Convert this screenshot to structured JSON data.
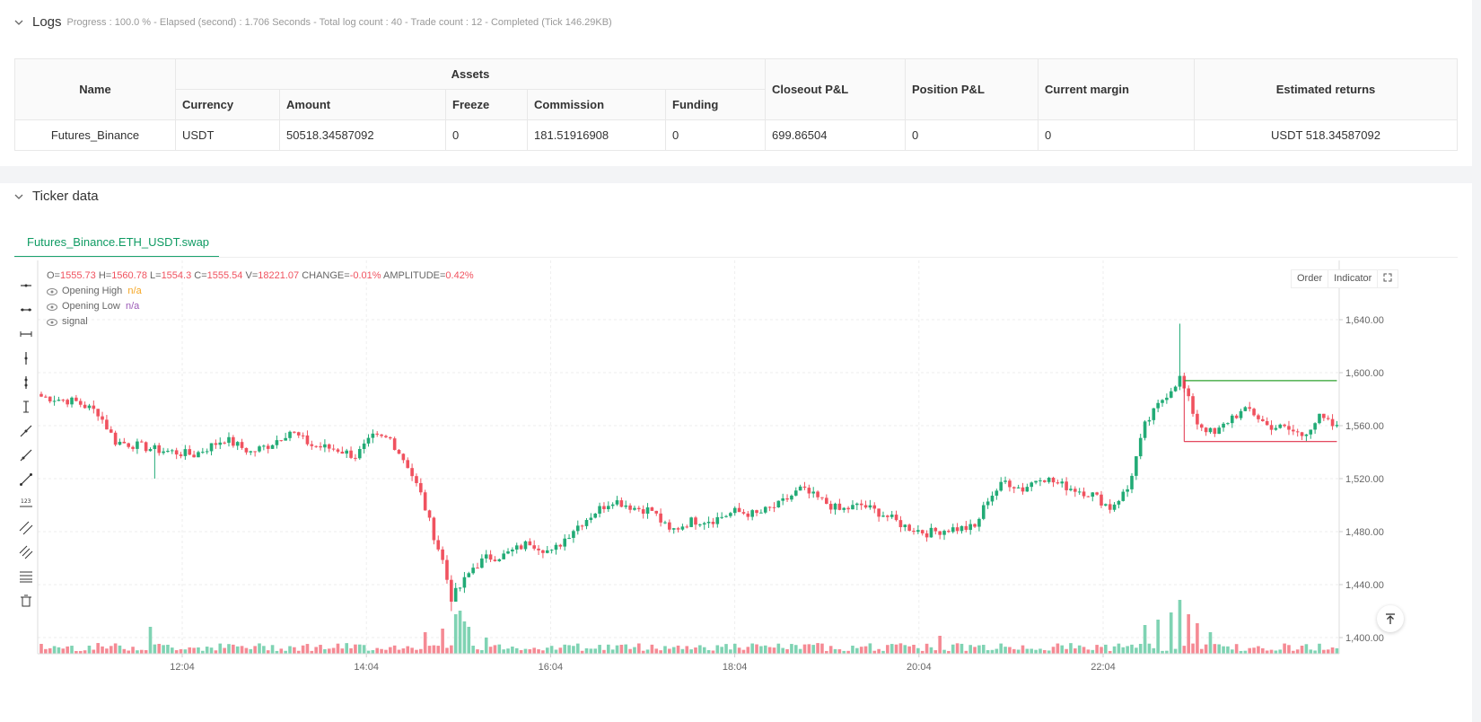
{
  "logs": {
    "title": "Logs",
    "summary": "Progress : 100.0 % - Elapsed (second) : 1.706  Seconds - Total log count : 40 - Trade count : 12 - Completed (Tick 146.29KB)",
    "table": {
      "h_name": "Name",
      "h_assets": "Assets",
      "h_currency": "Currency",
      "h_amount": "Amount",
      "h_freeze": "Freeze",
      "h_commission": "Commission",
      "h_funding": "Funding",
      "h_closeout": "Closeout P&L",
      "h_position": "Position P&L",
      "h_margin": "Current margin",
      "h_returns": "Estimated returns",
      "row": {
        "name": "Futures_Binance",
        "currency": "USDT",
        "amount": "50518.34587092",
        "freeze": "0",
        "commission": "181.51916908",
        "funding": "0",
        "closeout": "699.86504",
        "position": "0",
        "margin": "0",
        "returns": "USDT 518.34587092"
      }
    }
  },
  "ticker": {
    "title": "Ticker data",
    "tab": "Futures_Binance.ETH_USDT.swap",
    "buttons": {
      "order": "Order",
      "indicator": "Indicator"
    },
    "ohlc": {
      "o_label": "O=",
      "o": "1555.73",
      "h_label": "H=",
      "h": "1560.78",
      "l_label": "L=",
      "l": "1554.3",
      "c_label": "C=",
      "c": "1555.54",
      "v_label": "V=",
      "v": "18221.07",
      "chg_label": "CHANGE=",
      "chg": "-0.01%",
      "amp_label": "AMPLITUDE=",
      "amp": "0.42%"
    },
    "indicators": [
      {
        "name": "Opening High",
        "value": "n/a",
        "color": "#f5a623"
      },
      {
        "name": "Opening Low",
        "value": "n/a",
        "color": "#9b59b6"
      },
      {
        "name": "signal",
        "value": ""
      }
    ]
  },
  "colors": {
    "up": "#26a69a",
    "up_bright": "#22ab76",
    "down": "#f0525f",
    "accent": "#0f9b63"
  },
  "chart_data": {
    "type": "candlestick",
    "y_ticks": [
      "1,640.00",
      "1,600.00",
      "1,560.00",
      "1,520.00",
      "1,480.00",
      "1,440.00",
      "1,400.00"
    ],
    "x_ticks": [
      "12:04",
      "14:04",
      "16:04",
      "18:04",
      "20:04",
      "22:04"
    ],
    "ylim": [
      1388,
      1650
    ],
    "anchors": [
      [
        0,
        1582
      ],
      [
        8,
        1578
      ],
      [
        13,
        1570
      ],
      [
        17,
        1548
      ],
      [
        22,
        1545
      ],
      [
        26,
        1542
      ],
      [
        35,
        1538
      ],
      [
        42,
        1550
      ],
      [
        48,
        1540
      ],
      [
        52,
        1545
      ],
      [
        57,
        1556
      ],
      [
        62,
        1545
      ],
      [
        68,
        1542
      ],
      [
        72,
        1537
      ],
      [
        76,
        1551
      ],
      [
        80,
        1550
      ],
      [
        84,
        1530
      ],
      [
        87,
        1508
      ],
      [
        90,
        1477
      ],
      [
        92,
        1458
      ],
      [
        94,
        1430
      ],
      [
        96,
        1438
      ],
      [
        99,
        1453
      ],
      [
        102,
        1460
      ],
      [
        106,
        1462
      ],
      [
        112,
        1472
      ],
      [
        117,
        1464
      ],
      [
        122,
        1482
      ],
      [
        127,
        1495
      ],
      [
        131,
        1504
      ],
      [
        136,
        1498
      ],
      [
        140,
        1496
      ],
      [
        144,
        1480
      ],
      [
        149,
        1488
      ],
      [
        154,
        1489
      ],
      [
        159,
        1495
      ],
      [
        164,
        1493
      ],
      [
        169,
        1500
      ],
      [
        174,
        1512
      ],
      [
        178,
        1505
      ],
      [
        183,
        1496
      ],
      [
        188,
        1500
      ],
      [
        193,
        1493
      ],
      [
        198,
        1484
      ],
      [
        203,
        1479
      ],
      [
        208,
        1482
      ],
      [
        214,
        1483
      ],
      [
        217,
        1505
      ],
      [
        221,
        1518
      ],
      [
        225,
        1512
      ],
      [
        229,
        1522
      ],
      [
        233,
        1516
      ],
      [
        237,
        1512
      ],
      [
        241,
        1508
      ],
      [
        245,
        1498
      ],
      [
        249,
        1512
      ],
      [
        253,
        1560
      ],
      [
        257,
        1580
      ],
      [
        261,
        1596
      ],
      [
        265,
        1562
      ],
      [
        269,
        1553
      ],
      [
        273,
        1567
      ],
      [
        277,
        1572
      ],
      [
        281,
        1560
      ],
      [
        285,
        1558
      ],
      [
        289,
        1553
      ],
      [
        293,
        1566
      ],
      [
        297,
        1558
      ]
    ],
    "opening_high": {
      "value": 1594,
      "from": 262,
      "to": 297
    },
    "opening_low": {
      "value": 1548,
      "from": 262,
      "to": 297
    },
    "volume_spikes": [
      [
        25,
        30
      ],
      [
        88,
        24
      ],
      [
        92,
        28
      ],
      [
        95,
        44
      ],
      [
        96,
        48
      ],
      [
        97,
        36
      ],
      [
        98,
        30
      ],
      [
        102,
        18
      ],
      [
        200,
        10
      ],
      [
        206,
        20
      ],
      [
        253,
        32
      ],
      [
        256,
        38
      ],
      [
        259,
        46
      ],
      [
        261,
        60
      ],
      [
        263,
        44
      ],
      [
        265,
        34
      ],
      [
        268,
        24
      ]
    ]
  }
}
